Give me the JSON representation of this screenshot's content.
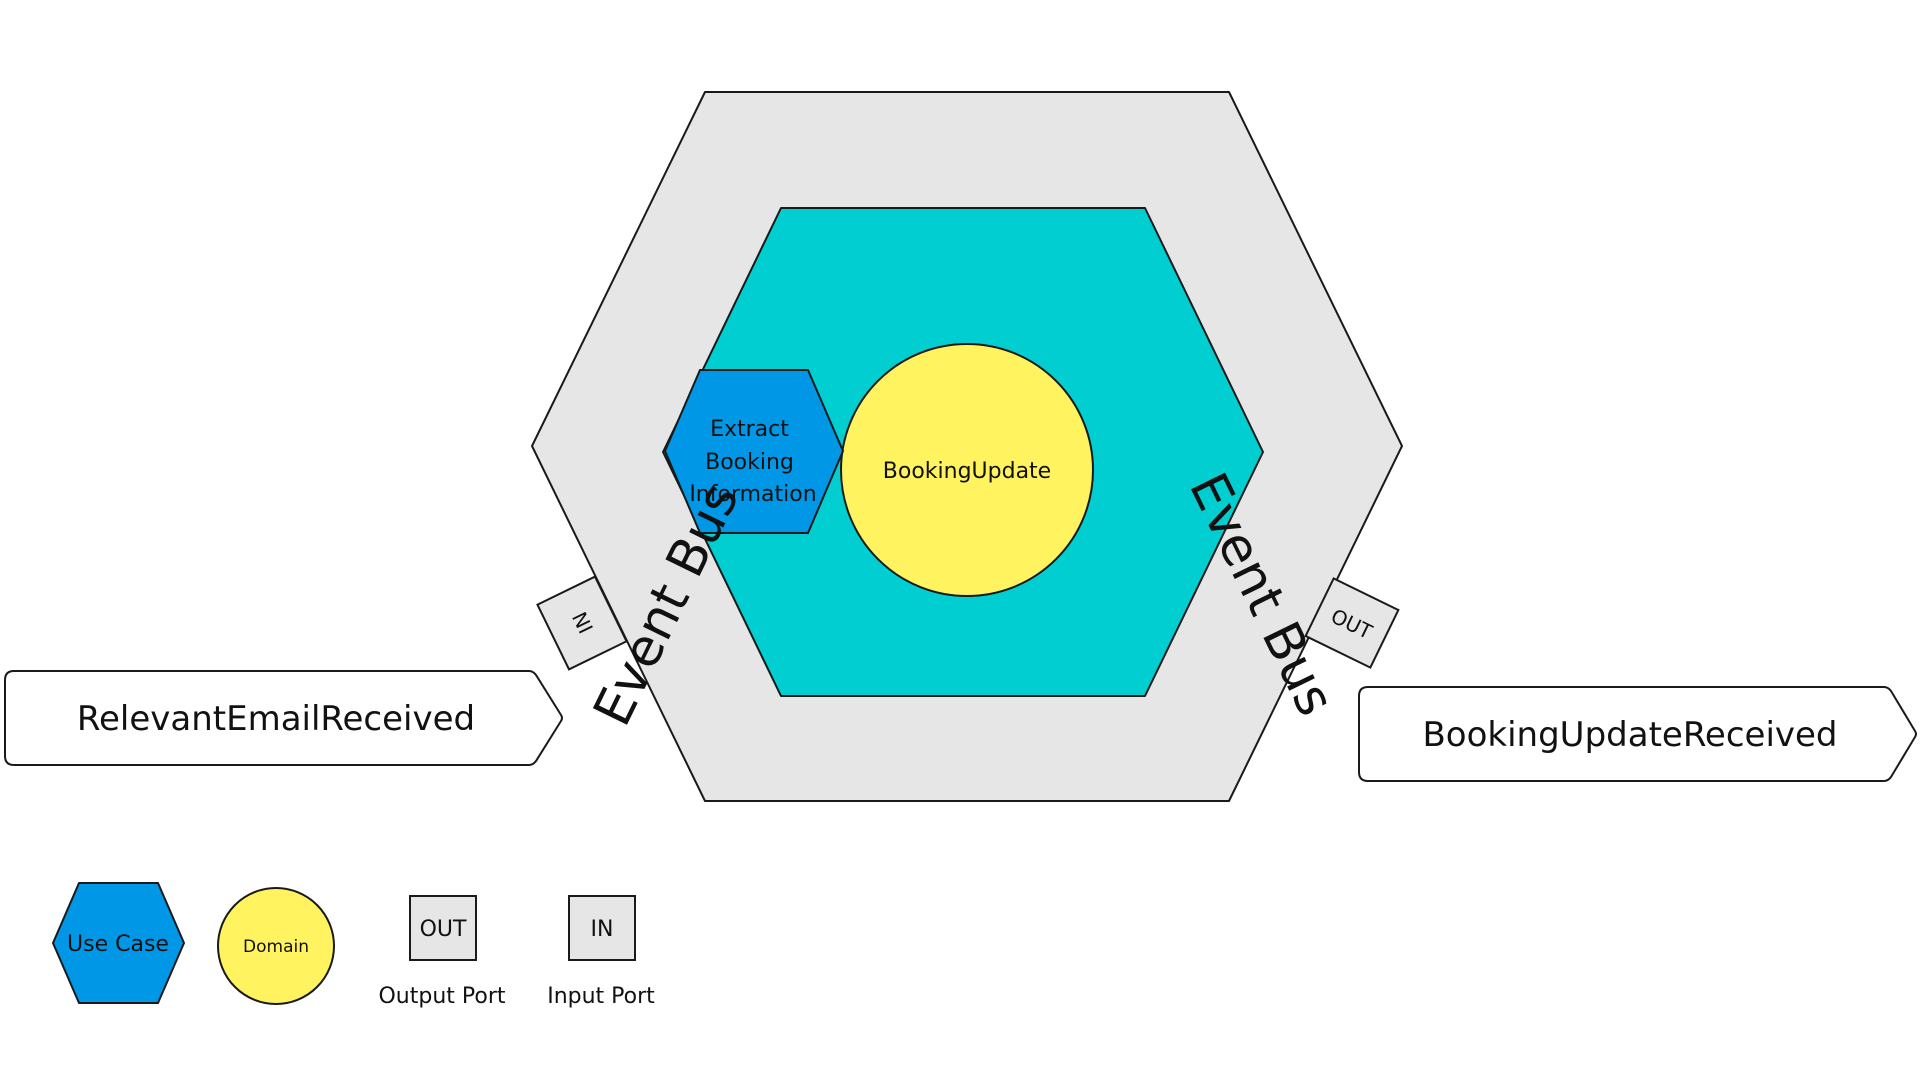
{
  "application": {
    "left_bus_label": "Event Bus",
    "right_bus_label": "Event Bus",
    "input_port_label": "IN",
    "output_port_label": "OUT"
  },
  "use_case": {
    "lines": [
      "Extract",
      "Booking",
      "Information"
    ]
  },
  "domain": {
    "label": "BookingUpdate"
  },
  "events": {
    "incoming": "RelevantEmailReceived",
    "outgoing": "BookingUpdateReceived"
  },
  "legend": {
    "use_case": "Use Case",
    "domain": "Domain",
    "output_port_box": "OUT",
    "output_port_caption": "Output Port",
    "input_port_box": "IN",
    "input_port_caption": "Input Port"
  },
  "colors": {
    "application_fill": "#e6e6e6",
    "core_fill": "#00ced1",
    "use_case_fill": "#0097e6",
    "domain_fill": "#fff45f",
    "port_fill": "#e6e6e6",
    "event_fill": "#ffffff",
    "stroke": "#1a1a1a"
  }
}
